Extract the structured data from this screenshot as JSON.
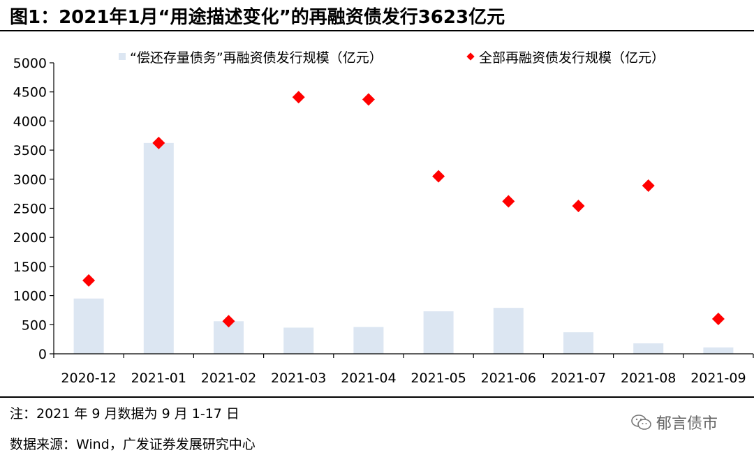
{
  "title": "图1：2021年1月“用途描述变化”的再融资债发行3623亿元",
  "note": "注：2021 年 9 月数据为 9 月 1-17 日",
  "source": "数据来源：Wind，广发证券发展研究中心",
  "watermark": "郁言债市",
  "colors": {
    "bar": "#dce6f2",
    "marker": "#ff0000"
  },
  "chart_data": {
    "type": "bar",
    "categories": [
      "2020-12",
      "2021-01",
      "2021-02",
      "2021-03",
      "2021-04",
      "2021-05",
      "2021-06",
      "2021-07",
      "2021-08",
      "2021-09"
    ],
    "series": [
      {
        "name": "“偿还存量债务”再融资债发行规模（亿元）",
        "kind": "bar",
        "values": [
          950,
          3623,
          560,
          450,
          460,
          730,
          790,
          370,
          180,
          110
        ]
      },
      {
        "name": "全部再融资债发行规模（亿元）",
        "kind": "scatter",
        "marker": "diamond",
        "values": [
          1260,
          3623,
          560,
          4410,
          4370,
          3050,
          2620,
          2540,
          2890,
          600
        ]
      }
    ],
    "yticks": [
      0,
      500,
      1000,
      1500,
      2000,
      2500,
      3000,
      3500,
      4000,
      4500,
      5000
    ],
    "ylim": [
      0,
      5000
    ],
    "grid": false,
    "legend_position": "top"
  }
}
